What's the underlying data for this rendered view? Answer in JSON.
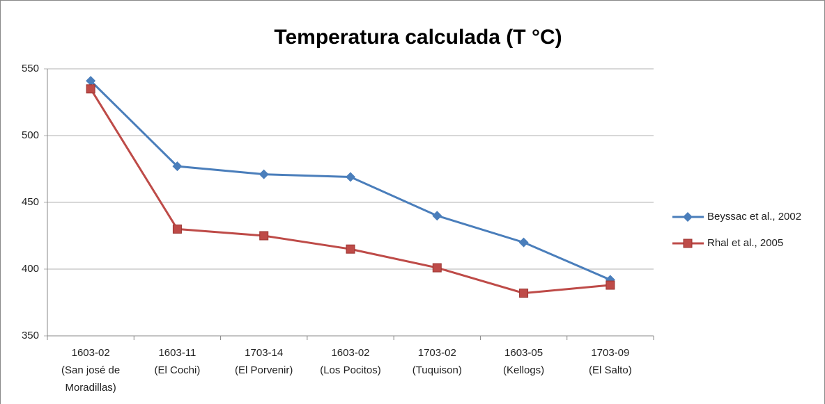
{
  "chart_data": {
    "type": "line",
    "title": "Temperatura calculada (T °C)",
    "categories": [
      [
        "1603-02",
        "(San josé de",
        "Moradillas)"
      ],
      [
        "1603-11",
        "(El Cochi)"
      ],
      [
        "1703-14",
        "(El Porvenir)"
      ],
      [
        "1603-02",
        "(Los Pocitos)"
      ],
      [
        "1703-02",
        "(Tuquison)"
      ],
      [
        "1603-05",
        "(Kellogs)"
      ],
      [
        "1703-09",
        "(El Salto)"
      ]
    ],
    "series": [
      {
        "name": "Beyssac et al., 2002",
        "color": "#4a7ebb",
        "marker": "diamond",
        "values": [
          541,
          477,
          471,
          469,
          440,
          420,
          392
        ]
      },
      {
        "name": "Rhal et al., 2005",
        "color": "#be4b48",
        "marker": "square",
        "values": [
          535,
          430,
          425,
          415,
          401,
          382,
          388
        ]
      }
    ],
    "ylim": [
      350,
      550
    ],
    "yticks": [
      350,
      400,
      450,
      500,
      550
    ],
    "grid": true,
    "legend": "right"
  }
}
